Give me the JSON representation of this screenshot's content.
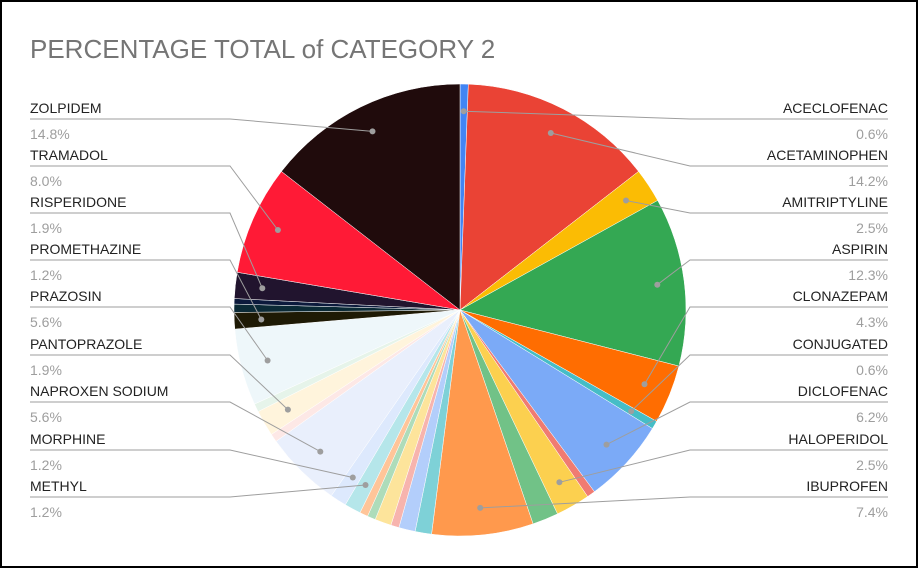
{
  "chart_data": {
    "type": "pie",
    "title": "PERCENTAGE TOTAL of CATEGORY 2",
    "slices": [
      {
        "label": "ACECLOFENAC",
        "pct_label": "0.6%",
        "value": 0.6,
        "color": "#4285f4",
        "labeled": true
      },
      {
        "label": "ACETAMINOPHEN",
        "pct_label": "14.2%",
        "value": 14.2,
        "color": "#ea4335",
        "labeled": true
      },
      {
        "label": "AMITRIPTYLINE",
        "pct_label": "2.5%",
        "value": 2.5,
        "color": "#fbbc04",
        "labeled": true
      },
      {
        "label": "ASPIRIN",
        "pct_label": "12.3%",
        "value": 12.3,
        "color": "#34a853",
        "labeled": true
      },
      {
        "label": "CLONAZEPAM",
        "pct_label": "4.3%",
        "value": 4.3,
        "color": "#ff6d01",
        "labeled": true
      },
      {
        "label": "CONJUGATED",
        "pct_label": "0.6%",
        "value": 0.6,
        "color": "#46bdc6",
        "labeled": true
      },
      {
        "label": "DICLOFENAC",
        "pct_label": "6.2%",
        "value": 6.2,
        "color": "#7baaf7",
        "labeled": true
      },
      {
        "label": "",
        "pct_label": "",
        "value": 0.6,
        "color": "#f07b72",
        "labeled": false
      },
      {
        "label": "HALOPERIDOL",
        "pct_label": "2.5%",
        "value": 2.5,
        "color": "#fcd04f",
        "labeled": true
      },
      {
        "label": "",
        "pct_label": "",
        "value": 1.9,
        "color": "#71c287",
        "labeled": false
      },
      {
        "label": "IBUPROFEN",
        "pct_label": "7.4%",
        "value": 7.4,
        "color": "#ff994d",
        "labeled": true
      },
      {
        "label": "",
        "pct_label": "",
        "value": 1.2,
        "color": "#7ed1d7",
        "labeled": false
      },
      {
        "label": "",
        "pct_label": "",
        "value": 1.2,
        "color": "#b3cefb",
        "labeled": false
      },
      {
        "label": "",
        "pct_label": "",
        "value": 0.6,
        "color": "#f7b4ae",
        "labeled": false
      },
      {
        "label": "",
        "pct_label": "",
        "value": 1.2,
        "color": "#fde49b",
        "labeled": false
      },
      {
        "label": "",
        "pct_label": "",
        "value": 0.6,
        "color": "#aedcba",
        "labeled": false
      },
      {
        "label": "",
        "pct_label": "",
        "value": 0.6,
        "color": "#ffc599",
        "labeled": false
      },
      {
        "label": "METHYL",
        "pct_label": "1.2%",
        "value": 1.2,
        "color": "#b5e6ea",
        "labeled": true
      },
      {
        "label": "MORPHINE",
        "pct_label": "1.2%",
        "value": 1.2,
        "color": "#dde9fd",
        "labeled": true
      },
      {
        "label": "NAPROXEN SODIUM",
        "pct_label": "5.6%",
        "value": 5.6,
        "color": "#e9effc",
        "labeled": true
      },
      {
        "label": "",
        "pct_label": "",
        "value": 0.6,
        "color": "#fde8e6",
        "labeled": false
      },
      {
        "label": "PANTOPRAZOLE",
        "pct_label": "1.9%",
        "value": 1.9,
        "color": "#fff4dc",
        "labeled": true
      },
      {
        "label": "",
        "pct_label": "",
        "value": 0.6,
        "color": "#e6f4ea",
        "labeled": false
      },
      {
        "label": "PRAZOSIN",
        "pct_label": "5.6%",
        "value": 5.6,
        "color": "#eef7fa",
        "labeled": true
      },
      {
        "label": "PROMETHAZINE",
        "pct_label": "1.2%",
        "value": 1.2,
        "color": "#1e1a05",
        "labeled": true
      },
      {
        "label": "",
        "pct_label": "",
        "value": 0.6,
        "color": "#0b2a36",
        "labeled": false
      },
      {
        "label": "",
        "pct_label": "",
        "value": 0.4,
        "color": "#0c1a3c",
        "labeled": false
      },
      {
        "label": "RISPERIDONE",
        "pct_label": "1.9%",
        "value": 1.9,
        "color": "#21142e",
        "labeled": true
      },
      {
        "label": "TRAMADOL",
        "pct_label": "8.0%",
        "value": 8.0,
        "color": "#ff1a36",
        "labeled": true
      },
      {
        "label": "ZOLPIDEM",
        "pct_label": "14.8%",
        "value": 14.8,
        "color": "#200b0c",
        "labeled": true
      }
    ],
    "legend": "labels around pie with leader lines",
    "colors": {
      "title": "#757575",
      "label": "#222222",
      "percent": "#9e9e9e",
      "leader": "#9e9e9e"
    }
  }
}
